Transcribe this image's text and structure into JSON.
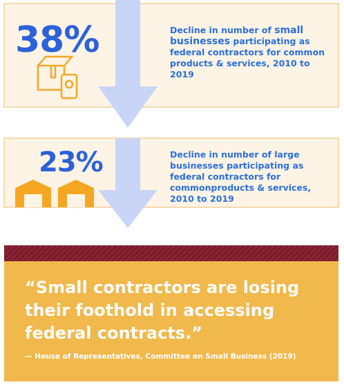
{
  "stats": [
    {
      "figure": "38%",
      "description": [
        "Decline in number of ",
        "small businesses",
        " participating as federal contractors for common products & services, 2010 to 2019"
      ]
    },
    {
      "figure": "23%",
      "description": [
        "Decline in number of large businesses participating as federal contractors for commonproducts & services, 2010 to 2019"
      ]
    }
  ],
  "quote": {
    "text": "“Small contractors are losing their foothold in accessing federal contracts.”",
    "attribution": "— House of Representatives, Committee on Small Business (2019)"
  }
}
